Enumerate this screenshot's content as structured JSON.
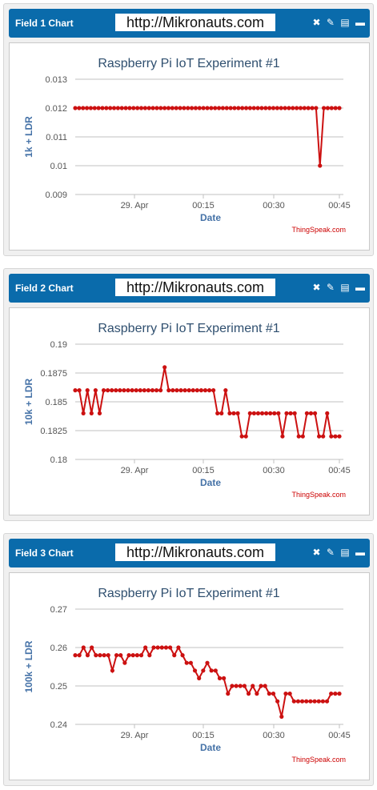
{
  "widgets": [
    {
      "title": "Field 1 Chart",
      "url": "http://Mikronauts.com"
    },
    {
      "title": "Field 2 Chart",
      "url": "http://Mikronauts.com"
    },
    {
      "title": "Field 3 Chart",
      "url": "http://Mikronauts.com"
    }
  ],
  "icons": [
    "close-icon",
    "edit-icon",
    "comment-icon",
    "minimize-icon"
  ],
  "colors": {
    "header": "#0a6bab",
    "series": "#cc1111",
    "title": "#2f4f6f",
    "axis_label": "#4572a7",
    "credit": "#cc0000"
  },
  "chart_data": [
    {
      "type": "line",
      "title": "Raspberry Pi IoT Experiment #1",
      "xlabel": "Date",
      "ylabel": "1k + LDR",
      "credit": "ThingSpeak.com",
      "xticks": [
        "29. Apr",
        "00:15",
        "00:30",
        "00:45"
      ],
      "yticks": [
        "0.013",
        "0.012",
        "0.011",
        "0.01",
        "0.009"
      ],
      "ylim": [
        0.009,
        0.013
      ],
      "grid": true,
      "x_start": 0,
      "x_step": 1,
      "values": [
        0.012,
        0.012,
        0.012,
        0.012,
        0.012,
        0.012,
        0.012,
        0.012,
        0.012,
        0.012,
        0.012,
        0.012,
        0.012,
        0.012,
        0.012,
        0.012,
        0.012,
        0.012,
        0.012,
        0.012,
        0.012,
        0.012,
        0.012,
        0.012,
        0.012,
        0.012,
        0.012,
        0.012,
        0.012,
        0.012,
        0.012,
        0.012,
        0.012,
        0.012,
        0.012,
        0.012,
        0.012,
        0.012,
        0.012,
        0.012,
        0.012,
        0.012,
        0.012,
        0.012,
        0.012,
        0.012,
        0.012,
        0.012,
        0.012,
        0.012,
        0.012,
        0.012,
        0.012,
        0.012,
        0.012,
        0.012,
        0.012,
        0.012,
        0.012,
        0.012,
        0.012,
        0.012,
        0.012,
        0.01,
        0.012,
        0.012,
        0.012,
        0.012,
        0.012
      ]
    },
    {
      "type": "line",
      "title": "Raspberry Pi IoT Experiment #1",
      "xlabel": "Date",
      "ylabel": "10k + LDR",
      "credit": "ThingSpeak.com",
      "xticks": [
        "29. Apr",
        "00:15",
        "00:30",
        "00:45"
      ],
      "yticks": [
        "0.19",
        "0.1875",
        "0.185",
        "0.1825",
        "0.18"
      ],
      "ylim": [
        0.18,
        0.19
      ],
      "grid": true,
      "values": [
        0.186,
        0.186,
        0.184,
        0.186,
        0.184,
        0.186,
        0.184,
        0.186,
        0.186,
        0.186,
        0.186,
        0.186,
        0.186,
        0.186,
        0.186,
        0.186,
        0.186,
        0.186,
        0.186,
        0.186,
        0.186,
        0.186,
        0.188,
        0.186,
        0.186,
        0.186,
        0.186,
        0.186,
        0.186,
        0.186,
        0.186,
        0.186,
        0.186,
        0.186,
        0.186,
        0.184,
        0.184,
        0.186,
        0.184,
        0.184,
        0.184,
        0.182,
        0.182,
        0.184,
        0.184,
        0.184,
        0.184,
        0.184,
        0.184,
        0.184,
        0.184,
        0.182,
        0.184,
        0.184,
        0.184,
        0.182,
        0.182,
        0.184,
        0.184,
        0.184,
        0.182,
        0.182,
        0.184,
        0.182,
        0.182,
        0.182
      ]
    },
    {
      "type": "line",
      "title": "Raspberry Pi IoT Experiment #1",
      "xlabel": "Date",
      "ylabel": "100k + LDR",
      "credit": "ThingSpeak.com",
      "xticks": [
        "29. Apr",
        "00:15",
        "00:30",
        "00:45"
      ],
      "yticks": [
        "0.27",
        "0.26",
        "0.25",
        "0.24"
      ],
      "ylim": [
        0.24,
        0.27
      ],
      "grid": true,
      "values": [
        0.258,
        0.258,
        0.26,
        0.258,
        0.26,
        0.258,
        0.258,
        0.258,
        0.258,
        0.254,
        0.258,
        0.258,
        0.256,
        0.258,
        0.258,
        0.258,
        0.258,
        0.26,
        0.258,
        0.26,
        0.26,
        0.26,
        0.26,
        0.26,
        0.258,
        0.26,
        0.258,
        0.256,
        0.256,
        0.254,
        0.252,
        0.254,
        0.256,
        0.254,
        0.254,
        0.252,
        0.252,
        0.248,
        0.25,
        0.25,
        0.25,
        0.25,
        0.248,
        0.25,
        0.248,
        0.25,
        0.25,
        0.248,
        0.248,
        0.246,
        0.242,
        0.248,
        0.248,
        0.246,
        0.246,
        0.246,
        0.246,
        0.246,
        0.246,
        0.246,
        0.246,
        0.246,
        0.248,
        0.248,
        0.248
      ]
    }
  ]
}
